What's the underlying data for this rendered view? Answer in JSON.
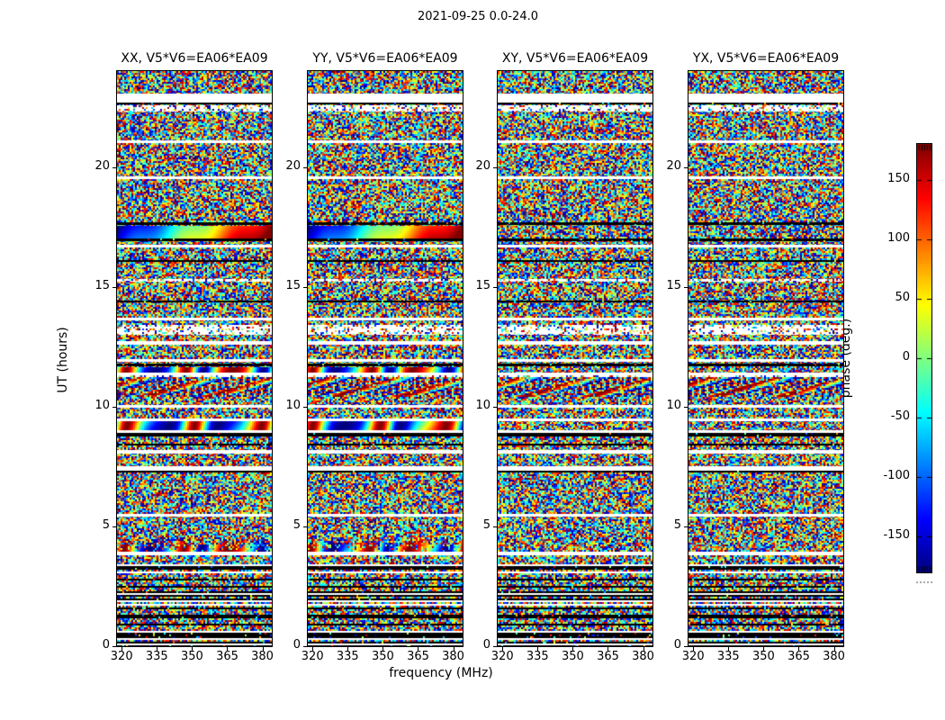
{
  "figure": {
    "title": "2021-09-25 0.0-24.0",
    "xlabel": "frequency (MHz)",
    "ylabel": "UT (hours)"
  },
  "colorbar": {
    "label": "phase (deg.)",
    "ticks": [
      150,
      100,
      50,
      0,
      -50,
      -100,
      -150
    ],
    "range": [
      -180,
      180
    ],
    "colormap": "jet"
  },
  "chart_data": {
    "type": "heatmap",
    "title": "2021-09-25 0.0-24.0",
    "panels": [
      {
        "id": "XX",
        "title": "XX, V5*V6=EA06*EA09",
        "has_coherent_fringes": true,
        "seed": 11
      },
      {
        "id": "YY",
        "title": "YY, V5*V6=EA06*EA09",
        "has_coherent_fringes": true,
        "seed": 22
      },
      {
        "id": "XY",
        "title": "XY, V5*V6=EA06*EA09",
        "has_coherent_fringes": false,
        "seed": 33
      },
      {
        "id": "YX",
        "title": "YX, V5*V6=EA06*EA09",
        "has_coherent_fringes": false,
        "seed": 44
      }
    ],
    "x": {
      "label": "frequency (MHz)",
      "unit": "MHz",
      "range": [
        318,
        384
      ],
      "ticks": [
        320,
        335,
        350,
        365,
        380
      ]
    },
    "y": {
      "label": "UT (hours)",
      "unit": "hours",
      "range": [
        0,
        24
      ],
      "ticks": [
        0,
        5,
        10,
        15,
        20
      ]
    },
    "z": {
      "label": "phase (deg.)",
      "unit": "deg",
      "range": [
        -180,
        180
      ],
      "colormap": "jet",
      "cbar_ticks": [
        150,
        100,
        50,
        0,
        -50,
        -100,
        -150
      ]
    },
    "content": "interferometric visibility phase vs frequency and UT; mostly uniform random phase noise with horizontal data-gap and RFI bands; coherent phase-wrap fringes appear only in the parallel-hand panels XX and YY",
    "features": {
      "white_gaps_hours": [
        [
          22.7,
          23.05
        ],
        [
          21.0,
          21.1
        ],
        [
          19.5,
          19.6
        ],
        [
          16.65,
          16.76
        ],
        [
          13.6,
          13.72
        ],
        [
          12.6,
          12.72
        ],
        [
          11.85,
          11.98
        ],
        [
          11.32,
          11.42
        ],
        [
          9.95,
          10.07
        ],
        [
          9.4,
          9.52
        ],
        [
          8.92,
          9.0
        ],
        [
          8.05,
          8.18
        ],
        [
          7.33,
          7.52
        ],
        [
          5.4,
          5.52
        ],
        [
          3.8,
          3.95
        ]
      ],
      "dark_rows_hours": [
        [
          22.6,
          22.68
        ],
        [
          17.58,
          17.7
        ],
        [
          16.9,
          17.02
        ],
        [
          16.03,
          16.1
        ],
        [
          14.35,
          14.43
        ],
        [
          11.68,
          11.8
        ],
        [
          8.75,
          8.9
        ],
        [
          8.36,
          8.44
        ],
        [
          7.25,
          7.33
        ]
      ],
      "dotted_rows_hours": [
        [
          22.3,
          22.58
        ],
        [
          15.22,
          15.34
        ],
        [
          12.98,
          13.4
        ],
        [
          11.22,
          11.32
        ]
      ],
      "fringe_bands_hours": [
        {
          "h0": 17.05,
          "h1": 17.55,
          "style": "ramp",
          "cycles": 1.0,
          "panels": [
            "XX",
            "YY"
          ]
        },
        {
          "h0": 11.44,
          "h1": 11.66,
          "style": "wrap",
          "cycles": 3.0,
          "panels": [
            "XX",
            "YY"
          ]
        },
        {
          "h0": 9.0,
          "h1": 9.38,
          "style": "wrap",
          "cycles": 2.5,
          "panels": [
            "XX",
            "YY"
          ]
        },
        {
          "h0": 3.95,
          "h1": 4.55,
          "style": "wrap",
          "cycles": 3.0,
          "fade_top": true,
          "panels": [
            "XX",
            "YY"
          ]
        }
      ],
      "moire_band_hours": [
        10.45,
        11.22
      ],
      "striped_region_hours": [
        0,
        3.5
      ]
    }
  }
}
